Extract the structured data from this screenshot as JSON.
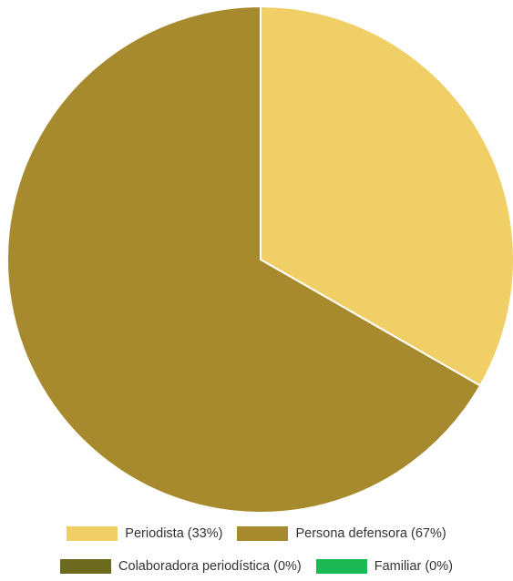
{
  "chart_data": {
    "type": "pie",
    "title": "",
    "slices": [
      {
        "label": "Periodista",
        "percent_label": "Periodista (33%)",
        "value": 33.3,
        "color": "#F0CF67"
      },
      {
        "label": "Persona defensora",
        "percent_label": "Persona defensora (67%)",
        "value": 66.7,
        "color": "#A78A2E"
      },
      {
        "label": "Colaboradora periodística",
        "percent_label": "Colaboradora periodística (0%)",
        "value": 0,
        "color": "#6B6A1E"
      },
      {
        "label": "Familiar",
        "percent_label": "Familiar (0%)",
        "value": 0,
        "color": "#1DB954"
      }
    ],
    "legend_position": "bottom"
  }
}
